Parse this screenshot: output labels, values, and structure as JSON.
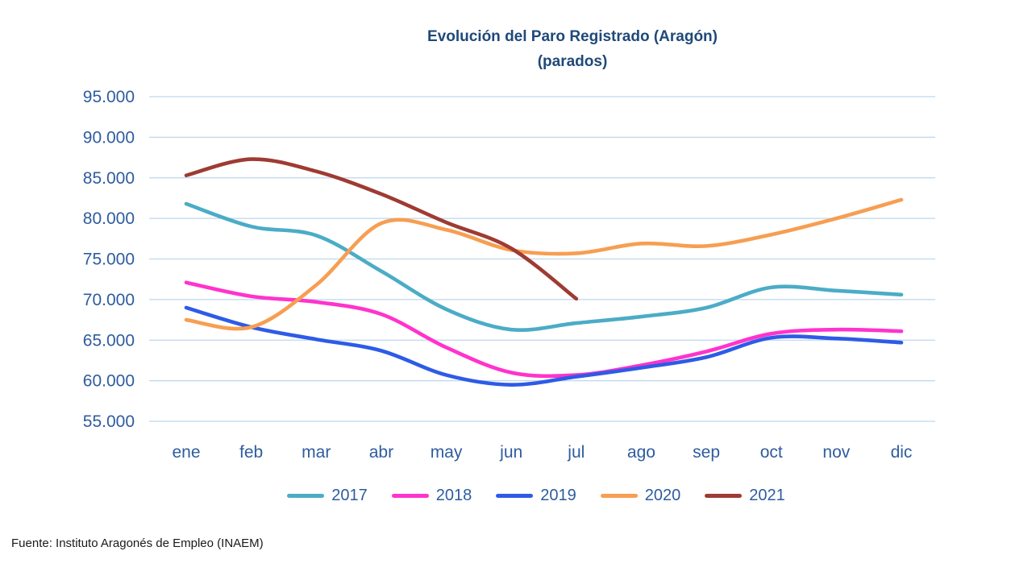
{
  "title": {
    "line1": "Evolución del Paro Registrado (Aragón)",
    "line2": "(parados)"
  },
  "source": "Fuente: Instituto Aragonés de Empleo (INAEM)",
  "chart_data": {
    "type": "line",
    "title": "Evolución del Paro Registrado (Aragón) (parados)",
    "xlabel": "",
    "ylabel": "",
    "categories": [
      "ene",
      "feb",
      "mar",
      "abr",
      "may",
      "jun",
      "jul",
      "ago",
      "sep",
      "oct",
      "nov",
      "dic"
    ],
    "ylim": [
      55000,
      95000
    ],
    "ytick_step": 5000,
    "ytick_labels": [
      "55.000",
      "60.000",
      "65.000",
      "70.000",
      "75.000",
      "80.000",
      "85.000",
      "90.000",
      "95.000"
    ],
    "grid": true,
    "legend_position": "bottom",
    "series": [
      {
        "name": "2017",
        "color": "#4BACC6",
        "values": [
          81800,
          79000,
          77900,
          73500,
          68800,
          66300,
          67100,
          67900,
          69000,
          71500,
          71100,
          70600
        ]
      },
      {
        "name": "2018",
        "color": "#FF33CC",
        "values": [
          72100,
          70400,
          69700,
          68200,
          64100,
          61000,
          60700,
          61900,
          63600,
          65800,
          66300,
          66100
        ]
      },
      {
        "name": "2019",
        "color": "#2E5BE6",
        "values": [
          69000,
          66600,
          65100,
          63700,
          60700,
          59500,
          60500,
          61600,
          62900,
          65300,
          65200,
          64700
        ]
      },
      {
        "name": "2020",
        "color": "#F79E52",
        "values": [
          67500,
          66600,
          71800,
          79400,
          78600,
          76100,
          75700,
          76900,
          76600,
          78000,
          80000,
          82300
        ]
      },
      {
        "name": "2021",
        "color": "#9E3B33",
        "values": [
          85300,
          87300,
          85800,
          83000,
          79500,
          76300,
          70100,
          null,
          null,
          null,
          null,
          null
        ]
      }
    ]
  }
}
